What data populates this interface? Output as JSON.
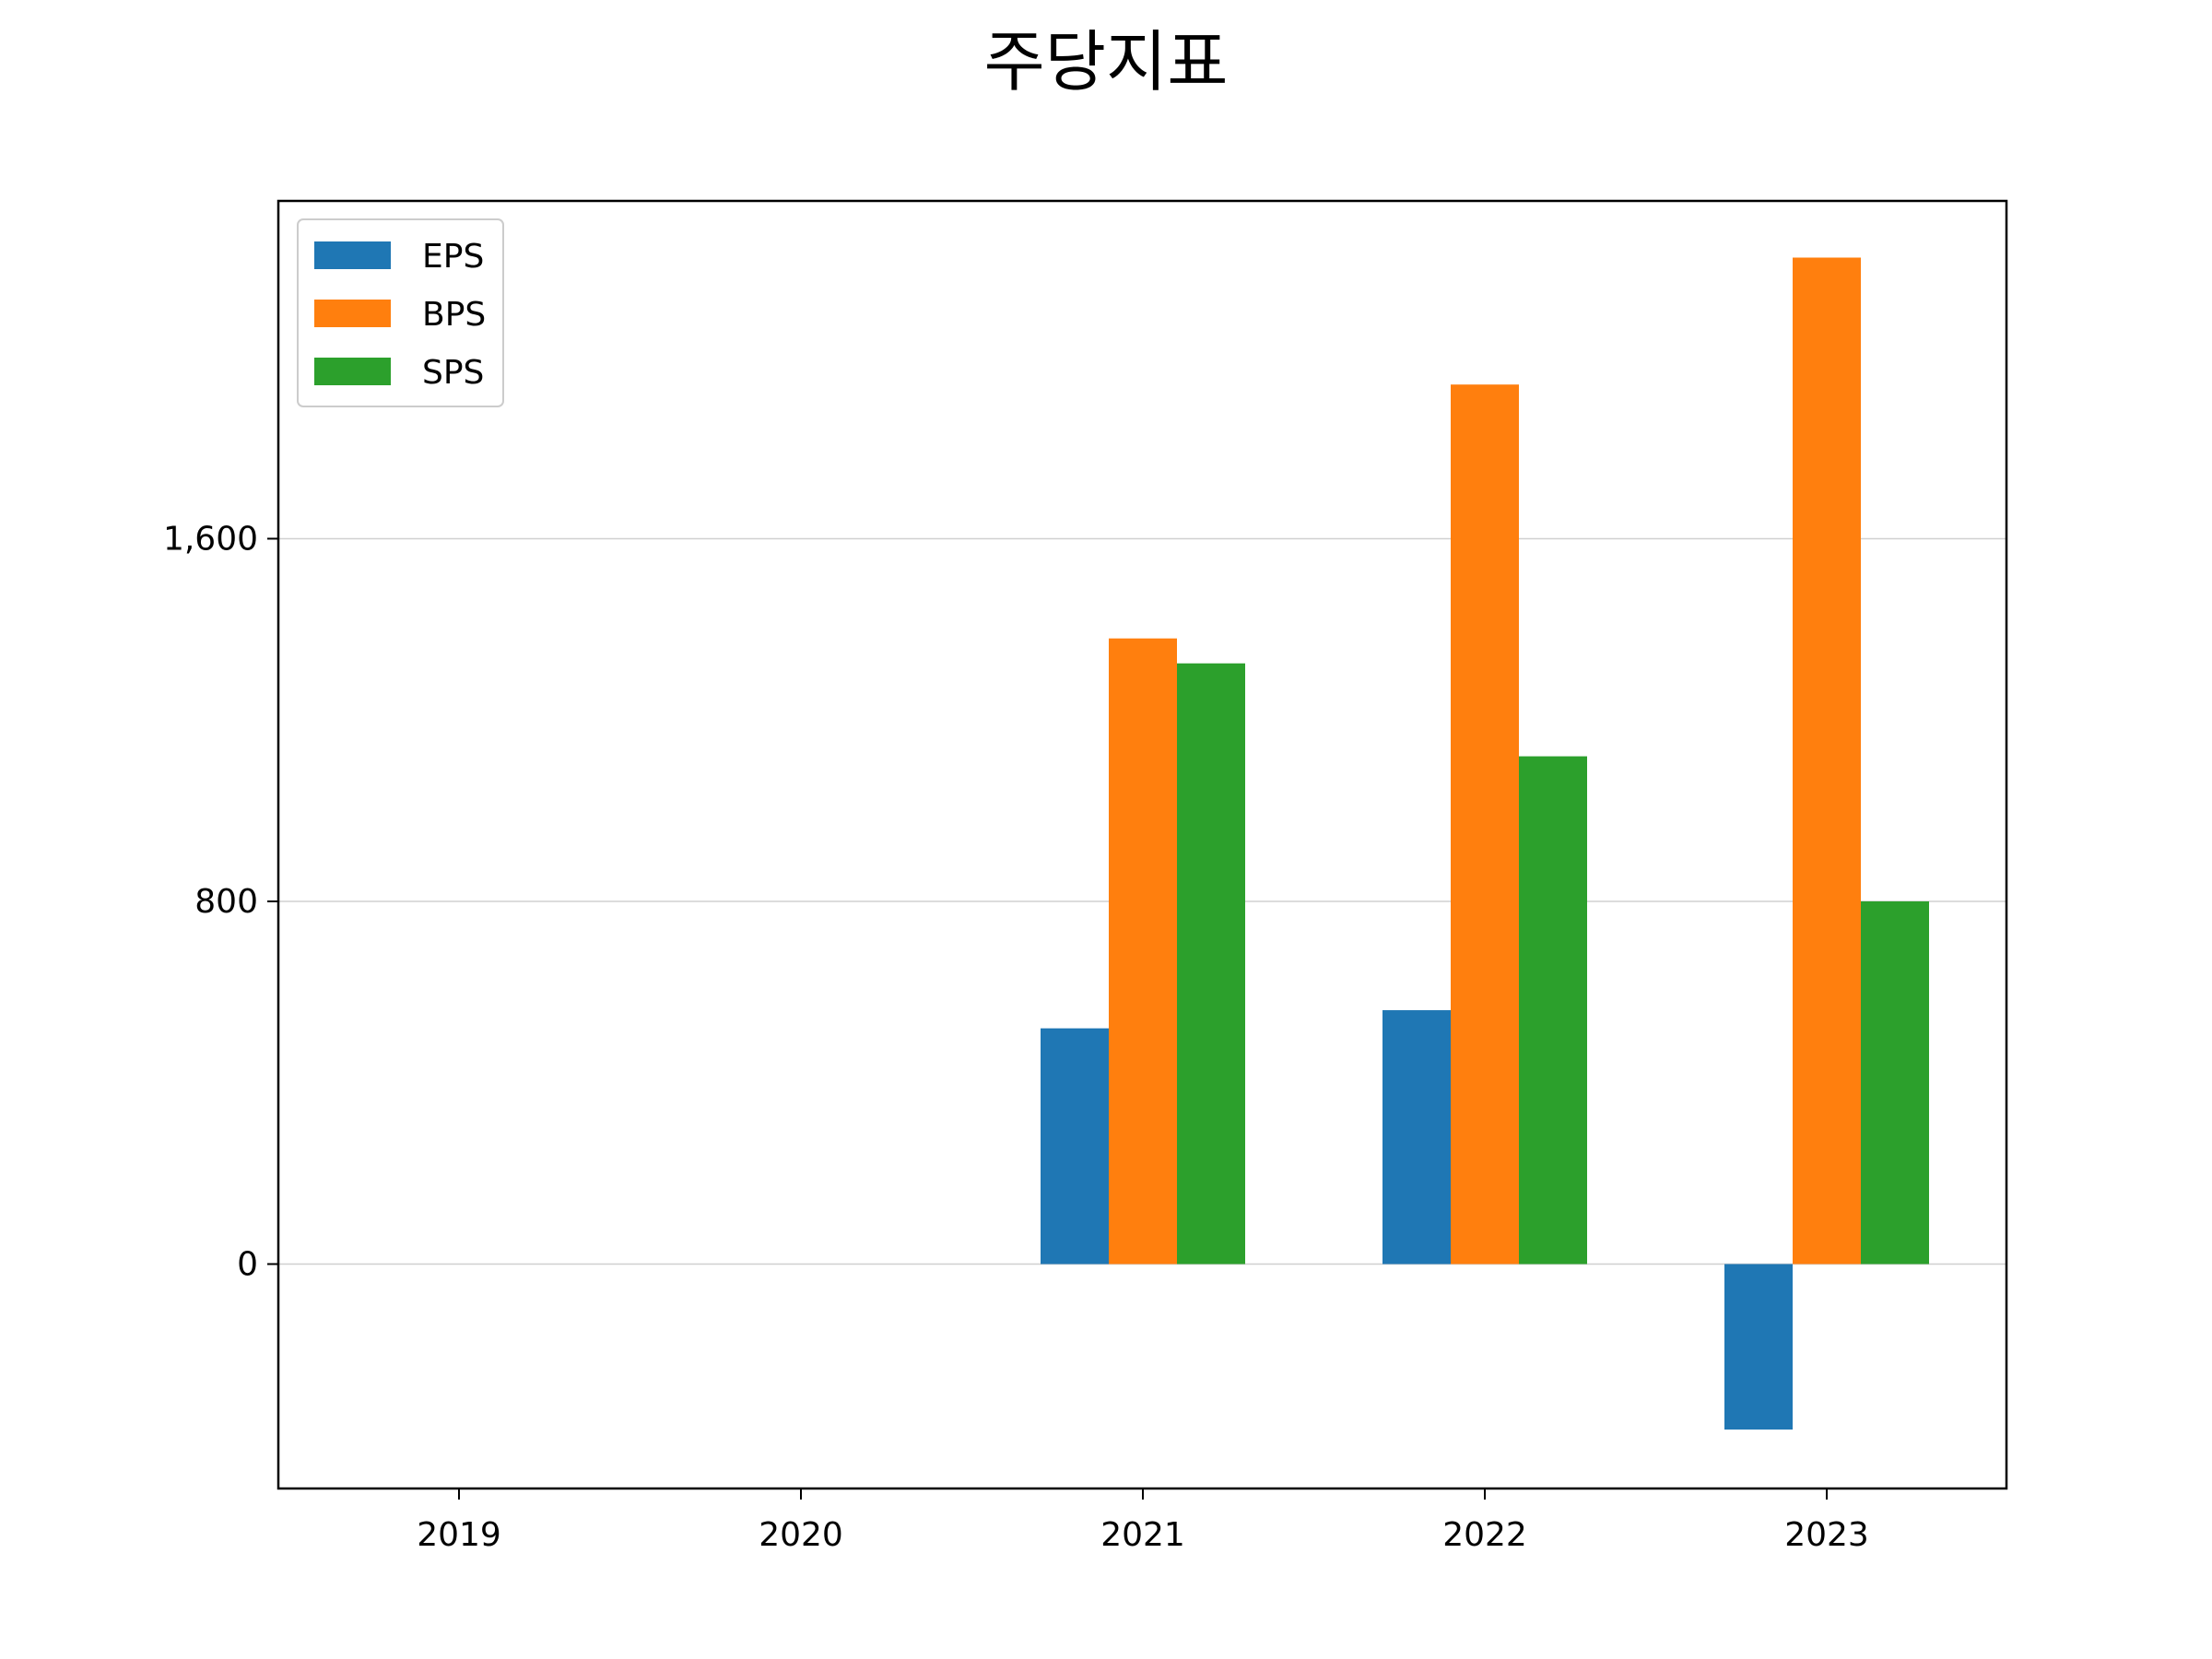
{
  "chart_data": {
    "type": "bar",
    "title": "주당지표",
    "xlabel": "",
    "ylabel": "",
    "categories": [
      "2019",
      "2020",
      "2021",
      "2022",
      "2023"
    ],
    "series": [
      {
        "name": "EPS",
        "color": "#1f77b4",
        "values": [
          null,
          null,
          520,
          560,
          -365
        ]
      },
      {
        "name": "BPS",
        "color": "#ff7f0e",
        "values": [
          null,
          null,
          1380,
          1940,
          2220
        ]
      },
      {
        "name": "SPS",
        "color": "#2ca02c",
        "values": [
          null,
          null,
          1325,
          1120,
          800
        ]
      }
    ],
    "ylim": [
      -495,
      2345
    ],
    "yticks": [
      0,
      800,
      1600
    ],
    "ytick_labels": [
      "0",
      "800",
      "1,600"
    ],
    "grid": "y",
    "legend": "upper-left"
  }
}
